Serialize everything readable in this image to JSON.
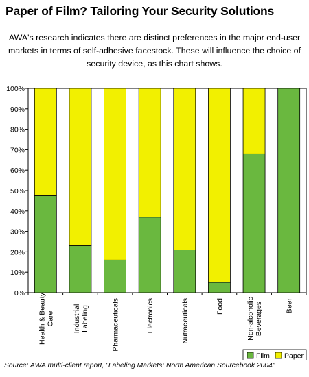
{
  "header": {
    "title": "Paper of Film? Tailoring Your Security Solutions",
    "subtitle": "AWA's research indicates there are distinct preferences in the major end-user markets in terms of self-adhesive facestock. These will influence the choice of security device, as this chart shows."
  },
  "footer": {
    "source": "Source: AWA multi-client report, \"Labeling Markets: North American Sourcebook 2004\""
  },
  "chart_data": {
    "type": "bar",
    "stacked": true,
    "categories": [
      "Health & Beauty Care",
      "Industrial Labeling",
      "Pharmaceuticals",
      "Electronics",
      "Nutraceuticals",
      "Food",
      "Non-alcoholic Beverages",
      "Beer"
    ],
    "category_label_lines": [
      [
        "Health & Beauty",
        "Care"
      ],
      [
        "Industrial",
        "Labeling"
      ],
      [
        "Pharmaceuticals"
      ],
      [
        "Electronics"
      ],
      [
        "Nutraceuticals"
      ],
      [
        "Food"
      ],
      [
        "Non-alcoholic",
        "Beverages"
      ],
      [
        "Beer"
      ]
    ],
    "series": [
      {
        "name": "Film",
        "color": "#6ab83f",
        "values": [
          47.5,
          23,
          16,
          37,
          21,
          5,
          68,
          100
        ]
      },
      {
        "name": "Paper",
        "color": "#f2f000",
        "values": [
          52.5,
          77,
          84,
          63,
          79,
          95,
          32,
          0
        ]
      }
    ],
    "ylim": [
      0,
      100
    ],
    "yticks": [
      "0%",
      "10%",
      "20%",
      "30%",
      "40%",
      "50%",
      "60%",
      "70%",
      "80%",
      "90%",
      "100%"
    ],
    "grid": false,
    "legend_position": "bottom-right"
  }
}
